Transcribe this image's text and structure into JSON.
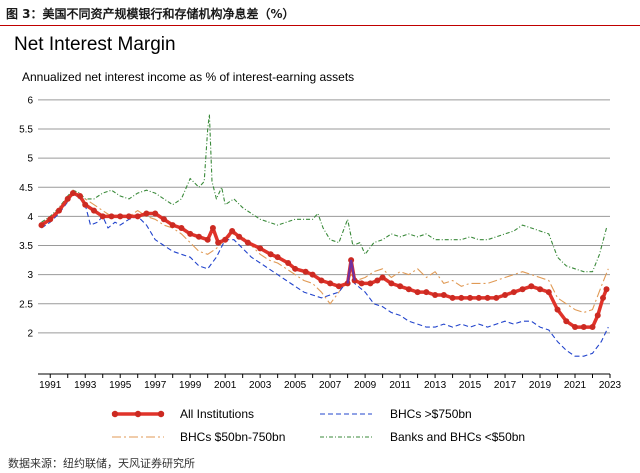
{
  "figure": {
    "caption": "图 3：美国不同资产规模银行和存储机构净息差（%）",
    "source": "数据来源：纽约联储，天风证券研究所"
  },
  "colors": {
    "all": "#e0332a",
    "all_marker": "#cc2a22",
    "over750": "#2244cc",
    "mid": "#e09a55",
    "small": "#3a8a3a",
    "highlight": "#7030a0",
    "grid": "#9a9a9a",
    "caption_rule": "#c00000"
  },
  "chart_data": {
    "type": "line",
    "title": "Net Interest Margin",
    "subtitle": "Annualized net interest income as % of interest-earning assets",
    "xlim": [
      1990.3,
      2023
    ],
    "ylim": [
      1.5,
      6.05
    ],
    "xticks": [
      1991,
      1993,
      1995,
      1997,
      1999,
      2001,
      2003,
      2005,
      2007,
      2009,
      2011,
      2013,
      2015,
      2017,
      2019,
      2021,
      2023
    ],
    "yticks": [
      2,
      2.5,
      3,
      3.5,
      4,
      4.5,
      5,
      5.5,
      6
    ],
    "ytick_labels": [
      "2",
      "2.5",
      "3",
      "3.5",
      "4",
      "4.5",
      "5",
      "5.5",
      "6"
    ],
    "grid": "horizontal",
    "legend_position": "bottom",
    "series": [
      {
        "name": "All Institutions",
        "style": "solid-markers",
        "points": [
          [
            1990.5,
            3.85
          ],
          [
            1991,
            3.95
          ],
          [
            1991.5,
            4.1
          ],
          [
            1992,
            4.3
          ],
          [
            1992.3,
            4.4
          ],
          [
            1992.7,
            4.35
          ],
          [
            1993,
            4.2
          ],
          [
            1993.5,
            4.1
          ],
          [
            1994,
            4.0
          ],
          [
            1994.5,
            4.0
          ],
          [
            1995,
            4.0
          ],
          [
            1995.5,
            4.0
          ],
          [
            1996,
            4.0
          ],
          [
            1996.5,
            4.05
          ],
          [
            1997,
            4.05
          ],
          [
            1997.5,
            3.95
          ],
          [
            1998,
            3.85
          ],
          [
            1998.5,
            3.8
          ],
          [
            1999,
            3.7
          ],
          [
            1999.5,
            3.65
          ],
          [
            2000,
            3.6
          ],
          [
            2000.3,
            3.8
          ],
          [
            2000.6,
            3.55
          ],
          [
            2001,
            3.6
          ],
          [
            2001.4,
            3.75
          ],
          [
            2001.8,
            3.65
          ],
          [
            2002.3,
            3.55
          ],
          [
            2003,
            3.45
          ],
          [
            2003.6,
            3.35
          ],
          [
            2004,
            3.3
          ],
          [
            2004.6,
            3.2
          ],
          [
            2005,
            3.1
          ],
          [
            2005.6,
            3.05
          ],
          [
            2006,
            3.0
          ],
          [
            2006.5,
            2.9
          ],
          [
            2007,
            2.85
          ],
          [
            2007.5,
            2.8
          ],
          [
            2008,
            2.85
          ],
          [
            2008.2,
            3.25
          ],
          [
            2008.4,
            2.9
          ],
          [
            2008.8,
            2.85
          ],
          [
            2009.3,
            2.85
          ],
          [
            2009.7,
            2.9
          ],
          [
            2010,
            2.95
          ],
          [
            2010.5,
            2.85
          ],
          [
            2011,
            2.8
          ],
          [
            2011.5,
            2.75
          ],
          [
            2012,
            2.7
          ],
          [
            2012.5,
            2.7
          ],
          [
            2013,
            2.65
          ],
          [
            2013.5,
            2.65
          ],
          [
            2014,
            2.6
          ],
          [
            2014.5,
            2.6
          ],
          [
            2015,
            2.6
          ],
          [
            2015.5,
            2.6
          ],
          [
            2016,
            2.6
          ],
          [
            2016.5,
            2.6
          ],
          [
            2017,
            2.65
          ],
          [
            2017.5,
            2.7
          ],
          [
            2018,
            2.75
          ],
          [
            2018.5,
            2.8
          ],
          [
            2019,
            2.75
          ],
          [
            2019.5,
            2.7
          ],
          [
            2020,
            2.4
          ],
          [
            2020.5,
            2.2
          ],
          [
            2021,
            2.1
          ],
          [
            2021.5,
            2.1
          ],
          [
            2022,
            2.1
          ],
          [
            2022.3,
            2.3
          ],
          [
            2022.6,
            2.6
          ],
          [
            2022.8,
            2.75
          ]
        ]
      },
      {
        "name": "BHCs >$750bn",
        "style": "dashed",
        "points": [
          [
            1990.5,
            3.8
          ],
          [
            1991,
            3.9
          ],
          [
            1991.5,
            4.05
          ],
          [
            1992,
            4.25
          ],
          [
            1992.3,
            4.4
          ],
          [
            1992.7,
            4.3
          ],
          [
            1993,
            4.2
          ],
          [
            1993.3,
            3.85
          ],
          [
            1993.7,
            3.9
          ],
          [
            1994,
            4.0
          ],
          [
            1994.3,
            3.8
          ],
          [
            1994.7,
            3.9
          ],
          [
            1995,
            3.85
          ],
          [
            1995.5,
            3.95
          ],
          [
            1996,
            4.0
          ],
          [
            1996.5,
            3.85
          ],
          [
            1997,
            3.6
          ],
          [
            1997.5,
            3.5
          ],
          [
            1998,
            3.4
          ],
          [
            1998.5,
            3.35
          ],
          [
            1999,
            3.3
          ],
          [
            1999.5,
            3.15
          ],
          [
            2000,
            3.1
          ],
          [
            2000.5,
            3.3
          ],
          [
            2001,
            3.6
          ],
          [
            2001.5,
            3.6
          ],
          [
            2002,
            3.45
          ],
          [
            2002.5,
            3.3
          ],
          [
            2003,
            3.2
          ],
          [
            2003.5,
            3.1
          ],
          [
            2004,
            3.0
          ],
          [
            2004.5,
            2.9
          ],
          [
            2005,
            2.8
          ],
          [
            2005.5,
            2.7
          ],
          [
            2006,
            2.65
          ],
          [
            2006.5,
            2.6
          ],
          [
            2007,
            2.65
          ],
          [
            2007.5,
            2.7
          ],
          [
            2008,
            2.9
          ],
          [
            2008.2,
            3.2
          ],
          [
            2008.4,
            2.85
          ],
          [
            2009,
            2.7
          ],
          [
            2009.5,
            2.5
          ],
          [
            2010,
            2.45
          ],
          [
            2010.5,
            2.35
          ],
          [
            2011,
            2.3
          ],
          [
            2011.5,
            2.2
          ],
          [
            2012,
            2.15
          ],
          [
            2012.5,
            2.1
          ],
          [
            2013,
            2.1
          ],
          [
            2013.5,
            2.15
          ],
          [
            2014,
            2.1
          ],
          [
            2014.5,
            2.15
          ],
          [
            2015,
            2.1
          ],
          [
            2015.5,
            2.15
          ],
          [
            2016,
            2.1
          ],
          [
            2016.5,
            2.15
          ],
          [
            2017,
            2.2
          ],
          [
            2017.5,
            2.15
          ],
          [
            2018,
            2.2
          ],
          [
            2018.5,
            2.2
          ],
          [
            2019,
            2.1
          ],
          [
            2019.5,
            2.05
          ],
          [
            2020,
            1.85
          ],
          [
            2020.5,
            1.7
          ],
          [
            2021,
            1.6
          ],
          [
            2021.5,
            1.6
          ],
          [
            2022,
            1.65
          ],
          [
            2022.5,
            1.85
          ],
          [
            2022.9,
            2.1
          ]
        ]
      },
      {
        "name": "BHCs $50bn-750bn",
        "style": "dashdot-long",
        "points": [
          [
            1990.5,
            3.85
          ],
          [
            1991,
            3.95
          ],
          [
            1991.5,
            4.1
          ],
          [
            1992,
            4.3
          ],
          [
            1992.3,
            4.45
          ],
          [
            1992.7,
            4.35
          ],
          [
            1993,
            4.3
          ],
          [
            1993.5,
            4.2
          ],
          [
            1994,
            4.1
          ],
          [
            1994.5,
            4.0
          ],
          [
            1995,
            4.0
          ],
          [
            1995.5,
            4.0
          ],
          [
            1996,
            4.1
          ],
          [
            1996.5,
            4.0
          ],
          [
            1997,
            3.95
          ],
          [
            1997.5,
            3.85
          ],
          [
            1998,
            3.8
          ],
          [
            1998.5,
            3.7
          ],
          [
            1999,
            3.55
          ],
          [
            1999.5,
            3.4
          ],
          [
            2000,
            3.35
          ],
          [
            2000.5,
            3.45
          ],
          [
            2001,
            3.6
          ],
          [
            2001.5,
            3.7
          ],
          [
            2002,
            3.65
          ],
          [
            2002.5,
            3.5
          ],
          [
            2003,
            3.35
          ],
          [
            2003.5,
            3.25
          ],
          [
            2004,
            3.2
          ],
          [
            2004.5,
            3.1
          ],
          [
            2005,
            3.0
          ],
          [
            2005.5,
            2.9
          ],
          [
            2006,
            2.85
          ],
          [
            2006.5,
            2.7
          ],
          [
            2007,
            2.5
          ],
          [
            2007.5,
            2.7
          ],
          [
            2008,
            2.9
          ],
          [
            2008.2,
            3.0
          ],
          [
            2008.5,
            2.9
          ],
          [
            2009,
            2.95
          ],
          [
            2009.5,
            3.05
          ],
          [
            2010,
            3.1
          ],
          [
            2010.5,
            2.95
          ],
          [
            2011,
            3.05
          ],
          [
            2011.5,
            3.0
          ],
          [
            2012,
            3.1
          ],
          [
            2012.5,
            2.95
          ],
          [
            2013,
            3.05
          ],
          [
            2013.5,
            2.85
          ],
          [
            2014,
            2.9
          ],
          [
            2014.5,
            2.8
          ],
          [
            2015,
            2.85
          ],
          [
            2015.5,
            2.85
          ],
          [
            2016,
            2.85
          ],
          [
            2016.5,
            2.9
          ],
          [
            2017,
            2.95
          ],
          [
            2017.5,
            3.0
          ],
          [
            2018,
            3.05
          ],
          [
            2018.5,
            3.0
          ],
          [
            2019,
            2.95
          ],
          [
            2019.5,
            2.9
          ],
          [
            2020,
            2.6
          ],
          [
            2020.5,
            2.5
          ],
          [
            2021,
            2.4
          ],
          [
            2021.5,
            2.35
          ],
          [
            2022,
            2.4
          ],
          [
            2022.5,
            2.8
          ],
          [
            2022.9,
            3.1
          ]
        ]
      },
      {
        "name": "Banks and BHCs <$50bn",
        "style": "dashdot",
        "points": [
          [
            1990.5,
            3.9
          ],
          [
            1991,
            4.0
          ],
          [
            1991.5,
            4.15
          ],
          [
            1992,
            4.35
          ],
          [
            1992.3,
            4.45
          ],
          [
            1992.7,
            4.4
          ],
          [
            1993,
            4.3
          ],
          [
            1993.5,
            4.3
          ],
          [
            1994,
            4.4
          ],
          [
            1994.5,
            4.45
          ],
          [
            1995,
            4.35
          ],
          [
            1995.5,
            4.3
          ],
          [
            1996,
            4.4
          ],
          [
            1996.5,
            4.45
          ],
          [
            1997,
            4.4
          ],
          [
            1997.5,
            4.3
          ],
          [
            1998,
            4.2
          ],
          [
            1998.5,
            4.3
          ],
          [
            1999,
            4.65
          ],
          [
            1999.5,
            4.5
          ],
          [
            1999.8,
            4.6
          ],
          [
            2000,
            5.5
          ],
          [
            2000.1,
            5.75
          ],
          [
            2000.25,
            4.6
          ],
          [
            2000.5,
            4.3
          ],
          [
            2000.8,
            4.5
          ],
          [
            2001,
            4.2
          ],
          [
            2001.5,
            4.3
          ],
          [
            2002,
            4.15
          ],
          [
            2002.5,
            4.05
          ],
          [
            2003,
            3.95
          ],
          [
            2003.5,
            3.9
          ],
          [
            2004,
            3.85
          ],
          [
            2004.5,
            3.9
          ],
          [
            2005,
            3.95
          ],
          [
            2005.5,
            3.95
          ],
          [
            2006,
            3.95
          ],
          [
            2006.3,
            4.05
          ],
          [
            2006.6,
            3.8
          ],
          [
            2007,
            3.6
          ],
          [
            2007.5,
            3.55
          ],
          [
            2008,
            3.95
          ],
          [
            2008.3,
            3.5
          ],
          [
            2008.7,
            3.55
          ],
          [
            2009,
            3.35
          ],
          [
            2009.5,
            3.55
          ],
          [
            2010,
            3.6
          ],
          [
            2010.5,
            3.7
          ],
          [
            2011,
            3.65
          ],
          [
            2011.5,
            3.7
          ],
          [
            2012,
            3.65
          ],
          [
            2012.5,
            3.7
          ],
          [
            2013,
            3.6
          ],
          [
            2013.5,
            3.6
          ],
          [
            2014,
            3.6
          ],
          [
            2014.5,
            3.6
          ],
          [
            2015,
            3.65
          ],
          [
            2015.5,
            3.6
          ],
          [
            2016,
            3.6
          ],
          [
            2016.5,
            3.65
          ],
          [
            2017,
            3.7
          ],
          [
            2017.5,
            3.75
          ],
          [
            2018,
            3.85
          ],
          [
            2018.5,
            3.8
          ],
          [
            2019,
            3.75
          ],
          [
            2019.5,
            3.7
          ],
          [
            2020,
            3.3
          ],
          [
            2020.5,
            3.15
          ],
          [
            2021,
            3.1
          ],
          [
            2021.5,
            3.05
          ],
          [
            2022,
            3.05
          ],
          [
            2022.4,
            3.35
          ],
          [
            2022.8,
            3.8
          ]
        ]
      }
    ]
  }
}
